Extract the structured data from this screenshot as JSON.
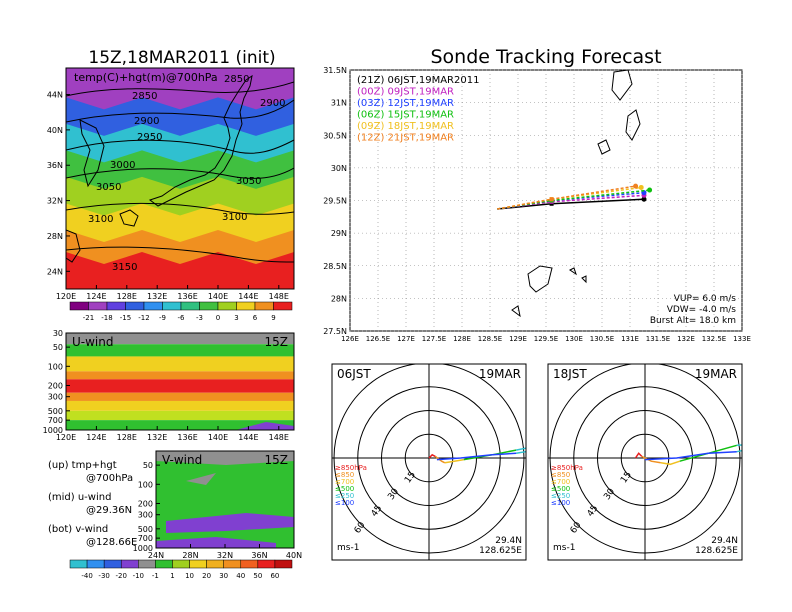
{
  "header": {
    "left_title": "15Z,18MAR2011 (init)",
    "main_title": "Sonde Tracking Forecast"
  },
  "colors": {
    "black": "#000000",
    "magenta": "#c020c0",
    "blue": "#2040ff",
    "green": "#10c010",
    "yellow": "#f0c020",
    "orange": "#f08020",
    "red_fill": "#f02020"
  },
  "chart_data": [
    {
      "id": "temp_hgt_map",
      "type": "heatmap",
      "title": "temp(C)+hgt(m)@700hPa",
      "xlabel": "",
      "ylabel": "",
      "x_ticks": [
        "120E",
        "124E",
        "128E",
        "132E",
        "136E",
        "140E",
        "144E",
        "148E"
      ],
      "y_ticks": [
        "44N",
        "40N",
        "36N",
        "32N",
        "28N",
        "24N"
      ],
      "xlim": [
        120,
        150
      ],
      "ylim": [
        22,
        47
      ],
      "contour_labels": [
        "2850",
        "2850",
        "2900",
        "2900",
        "2950",
        "3000",
        "3050",
        "3050",
        "3100",
        "3100",
        "3150"
      ],
      "colorbar_ticks": [
        "-21",
        "-18",
        "-15",
        "-12",
        "-9",
        "-6",
        "-3",
        "0",
        "3",
        "6",
        "9"
      ],
      "bands": [
        {
          "lat_top": 47,
          "lat_bot": 43,
          "color": "#a040c0",
          "value": "-18"
        },
        {
          "lat_top": 43,
          "lat_bot": 40,
          "color": "#3060e0",
          "value": "-12"
        },
        {
          "lat_top": 40,
          "lat_bot": 37,
          "color": "#30c0d0",
          "value": "-6"
        },
        {
          "lat_top": 37,
          "lat_bot": 34,
          "color": "#40c040",
          "value": "-3"
        },
        {
          "lat_top": 34,
          "lat_bot": 31,
          "color": "#a0d020",
          "value": "0"
        },
        {
          "lat_top": 31,
          "lat_bot": 28,
          "color": "#f0d020",
          "value": "3"
        },
        {
          "lat_top": 28,
          "lat_bot": 25.5,
          "color": "#f09020",
          "value": "6"
        },
        {
          "lat_top": 25.5,
          "lat_bot": 22,
          "color": "#e82020",
          "value": "9"
        }
      ]
    },
    {
      "id": "u_wind_section",
      "type": "heatmap",
      "title": "U-wind",
      "tag": "15Z",
      "x_ticks": [
        "120E",
        "124E",
        "128E",
        "132E",
        "136E",
        "140E",
        "144E",
        "148E"
      ],
      "y_ticks": [
        "30",
        "50",
        "100",
        "200",
        "300",
        "500",
        "700",
        "1000"
      ],
      "xlim": [
        120,
        150
      ],
      "ylim_hPa": [
        1000,
        30
      ],
      "layers": [
        {
          "p_top": 30,
          "p_bot": 45,
          "color": "#909090",
          "value": "-1..1"
        },
        {
          "p_top": 45,
          "p_bot": 70,
          "color": "#30c030",
          "value": "10"
        },
        {
          "p_top": 70,
          "p_bot": 120,
          "color": "#f0d020",
          "value": "30"
        },
        {
          "p_top": 120,
          "p_bot": 160,
          "color": "#f09020",
          "value": "40"
        },
        {
          "p_top": 160,
          "p_bot": 260,
          "color": "#e82020",
          "value": "50"
        },
        {
          "p_top": 260,
          "p_bot": 350,
          "color": "#f09020",
          "value": "40"
        },
        {
          "p_top": 350,
          "p_bot": 500,
          "color": "#f0d020",
          "value": "30"
        },
        {
          "p_top": 500,
          "p_bot": 700,
          "color": "#c0e020",
          "value": "20"
        },
        {
          "p_top": 700,
          "p_bot": 1000,
          "color": "#30c030",
          "value": "10"
        }
      ]
    },
    {
      "id": "v_wind_section",
      "type": "heatmap",
      "title": "V-wind",
      "tag": "15Z",
      "x_ticks": [
        "24N",
        "28N",
        "32N",
        "36N",
        "40N"
      ],
      "y_ticks": [
        "50",
        "100",
        "200",
        "300",
        "500",
        "700",
        "1000"
      ],
      "xlim": [
        24,
        40
      ],
      "ylim_hPa": [
        1000,
        30
      ],
      "background_color": "#30c030",
      "background_value": "1..10",
      "colorbar_ticks": [
        "-40",
        "-30",
        "-20",
        "-10",
        "-1",
        "1",
        "10",
        "20",
        "30",
        "40",
        "50",
        "60"
      ]
    },
    {
      "id": "sonde_tracks",
      "type": "line",
      "title": "Sonde Tracking Forecast",
      "x_ticks": [
        "126E",
        "126.5E",
        "127E",
        "127.5E",
        "128E",
        "128.5E",
        "129E",
        "129.5E",
        "130E",
        "130.5E",
        "131E",
        "131.5E",
        "132E",
        "132.5E",
        "133E"
      ],
      "y_ticks": [
        "31.5N",
        "31N",
        "30.5N",
        "30N",
        "29.5N",
        "29N",
        "28.5N",
        "28N",
        "27.5N"
      ],
      "xlim": [
        126,
        133
      ],
      "ylim": [
        27.5,
        31.5
      ],
      "series": [
        {
          "name": "(21Z) 06JST,19MAR2011",
          "color": "#000000",
          "x": [
            128.63,
            129.6,
            131.25
          ],
          "y": [
            29.37,
            29.45,
            29.52
          ]
        },
        {
          "name": "(00Z) 09JST,19MAR",
          "color": "#c020c0",
          "x": [
            128.63,
            129.6,
            131.25
          ],
          "y": [
            29.37,
            29.48,
            29.58
          ]
        },
        {
          "name": "(03Z) 12JST,19MAR",
          "color": "#2040ff",
          "x": [
            128.63,
            129.6,
            131.25
          ],
          "y": [
            29.37,
            29.5,
            29.62
          ]
        },
        {
          "name": "(06Z) 15JST,19MAR",
          "color": "#10c010",
          "x": [
            128.63,
            129.6,
            131.35
          ],
          "y": [
            29.37,
            29.5,
            29.66
          ]
        },
        {
          "name": "(09Z) 18JST,19MAR",
          "color": "#f0c020",
          "x": [
            128.63,
            129.6,
            131.2
          ],
          "y": [
            29.37,
            29.52,
            29.7
          ]
        },
        {
          "name": "(12Z) 21JST,19MAR",
          "color": "#f08020",
          "x": [
            128.63,
            129.6,
            131.1
          ],
          "y": [
            29.37,
            29.52,
            29.72
          ]
        }
      ],
      "info": [
        "VUP= 6.0 m/s",
        "VDW= -4.0 m/s",
        "Burst Alt= 18.0 km"
      ]
    },
    {
      "id": "hodograph_06",
      "type": "line",
      "title": "06JST",
      "date": "19MAR",
      "rings": [
        "15",
        "30",
        "45",
        "60"
      ],
      "unit": "ms-1",
      "lat": "29.4N",
      "lon": "128.625E",
      "legend": [
        "≥850hPa",
        "≤850",
        "≤700",
        "≤500",
        "≤250",
        "≤100"
      ],
      "legend_colors": [
        "#e82020",
        "#f09020",
        "#f0c020",
        "#10c010",
        "#30c0d0",
        "#2040ff"
      ],
      "segments": [
        {
          "color": "#e82020",
          "u": [
            0,
            2,
            4
          ],
          "v": [
            0,
            2,
            1
          ]
        },
        {
          "color": "#f09020",
          "u": [
            4,
            8,
            10
          ],
          "v": [
            1,
            -2,
            -3
          ]
        },
        {
          "color": "#f0c020",
          "u": [
            10,
            16,
            22
          ],
          "v": [
            -3,
            -2,
            -1
          ]
        },
        {
          "color": "#10c010",
          "u": [
            22,
            40,
            55
          ],
          "v": [
            -1,
            2,
            5
          ]
        },
        {
          "color": "#30c0d0",
          "u": [
            55,
            70,
            67,
            55
          ],
          "v": [
            5,
            8,
            5,
            3
          ]
        },
        {
          "color": "#2040ff",
          "u": [
            55,
            40,
            20,
            5
          ],
          "v": [
            3,
            2,
            0,
            -1
          ]
        }
      ]
    },
    {
      "id": "hodograph_18",
      "type": "line",
      "title": "18JST",
      "date": "19MAR",
      "rings": [
        "15",
        "30",
        "45",
        "60"
      ],
      "unit": "ms-1",
      "lat": "29.4N",
      "lon": "128.625E",
      "legend": [
        "≥850hPa",
        "≤850",
        "≤700",
        "≤500",
        "≤250",
        "≤100"
      ],
      "legend_colors": [
        "#e82020",
        "#f09020",
        "#f0c020",
        "#10c010",
        "#30c0d0",
        "#2040ff"
      ],
      "segments": [
        {
          "color": "#e82020",
          "u": [
            -6,
            -4,
            -2
          ],
          "v": [
            0,
            3,
            1
          ]
        },
        {
          "color": "#f09020",
          "u": [
            -2,
            4,
            10
          ],
          "v": [
            1,
            -2,
            -3
          ]
        },
        {
          "color": "#f0c020",
          "u": [
            10,
            16,
            22
          ],
          "v": [
            -3,
            -4,
            -2
          ]
        },
        {
          "color": "#10c010",
          "u": [
            22,
            40,
            58
          ],
          "v": [
            -2,
            3,
            8
          ]
        },
        {
          "color": "#30c0d0",
          "u": [
            58,
            72,
            68,
            58
          ],
          "v": [
            8,
            9,
            6,
            4
          ]
        },
        {
          "color": "#2040ff",
          "u": [
            58,
            40,
            20,
            0
          ],
          "v": [
            4,
            3,
            0,
            -1
          ]
        }
      ]
    }
  ],
  "side_labels": [
    {
      "line1": "(up) tmp+hgt",
      "line2": "@700hPa"
    },
    {
      "line1": "(mid) u-wind",
      "line2": "@29.36N"
    },
    {
      "line1": "(bot) v-wind",
      "line2": "@128.66E"
    }
  ]
}
